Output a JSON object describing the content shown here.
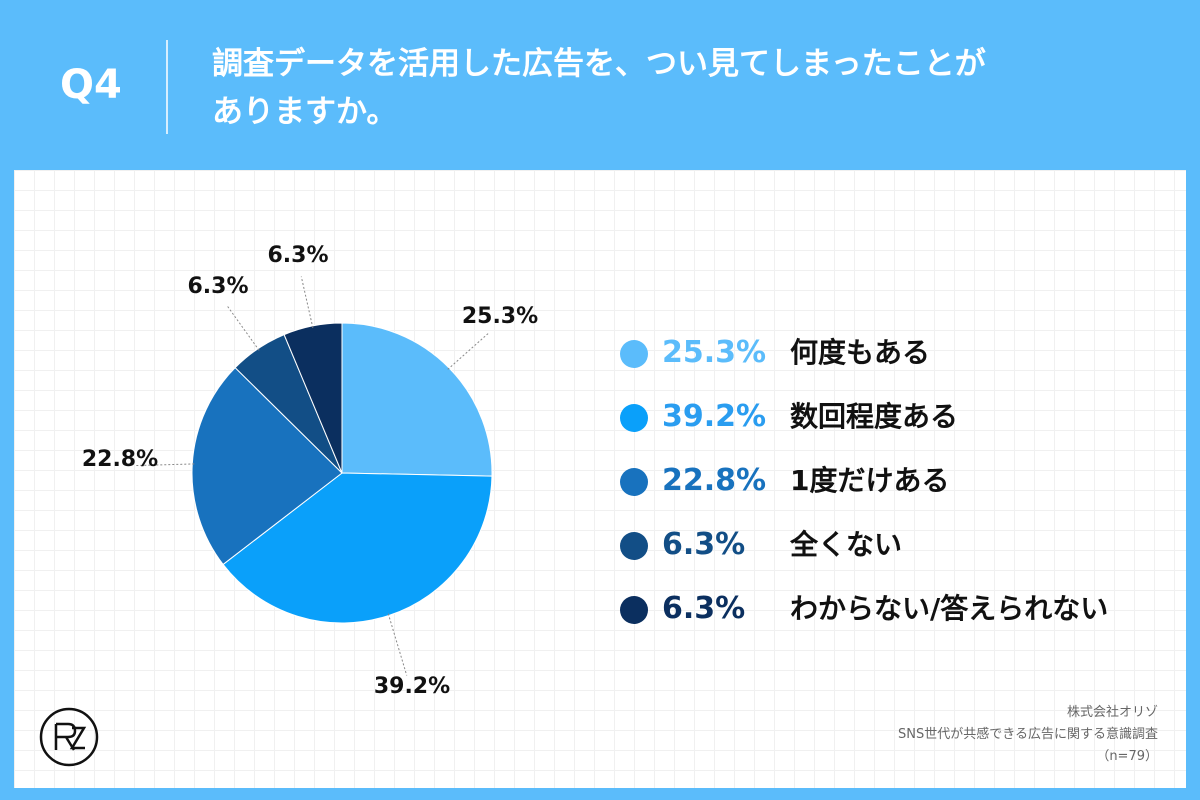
{
  "header": {
    "question_label": "Q4",
    "question_line1": "調査データを活用した広告を、つい見てしまったことが",
    "question_line2": "ありますか。"
  },
  "chart_data": {
    "type": "pie",
    "slices": [
      {
        "label": "何度もある",
        "value": 25.3,
        "display": "25.3%",
        "color": "#5bbcfb"
      },
      {
        "label": "数回程度ある",
        "value": 39.2,
        "display": "39.2%",
        "color": "#0aa0fa"
      },
      {
        "label": "1度だけある",
        "value": 22.8,
        "display": "22.8%",
        "color": "#1872be"
      },
      {
        "label": "全くない",
        "value": 6.3,
        "display": "6.3%",
        "color": "#124e86"
      },
      {
        "label": "わからない/答えられない",
        "value": 6.3,
        "display": "6.3%",
        "color": "#0b2f5f"
      }
    ],
    "legend_placement": "right"
  },
  "legend": [
    {
      "value": "25.3%",
      "label": "何度もある",
      "color": "#5bbcfb",
      "text_color": "#5bbcfb"
    },
    {
      "value": "39.2%",
      "label": "数回程度ある",
      "color": "#0aa0fa",
      "text_color": "#2a9df0"
    },
    {
      "value": "22.8%",
      "label": "1度だけある",
      "color": "#1872be",
      "text_color": "#1872be"
    },
    {
      "value": "6.3%",
      "label": "全くない",
      "color": "#124e86",
      "text_color": "#124e86"
    },
    {
      "value": "6.3%",
      "label": "わからない/答えられない",
      "color": "#0b2f5f",
      "text_color": "#0b2f5f"
    }
  ],
  "footer": {
    "company": "株式会社オリゾ",
    "survey": "SNS世代が共感できる広告に関する意識調査",
    "sample": "（n=79）"
  },
  "logo": {
    "name": "orizo-logo"
  }
}
